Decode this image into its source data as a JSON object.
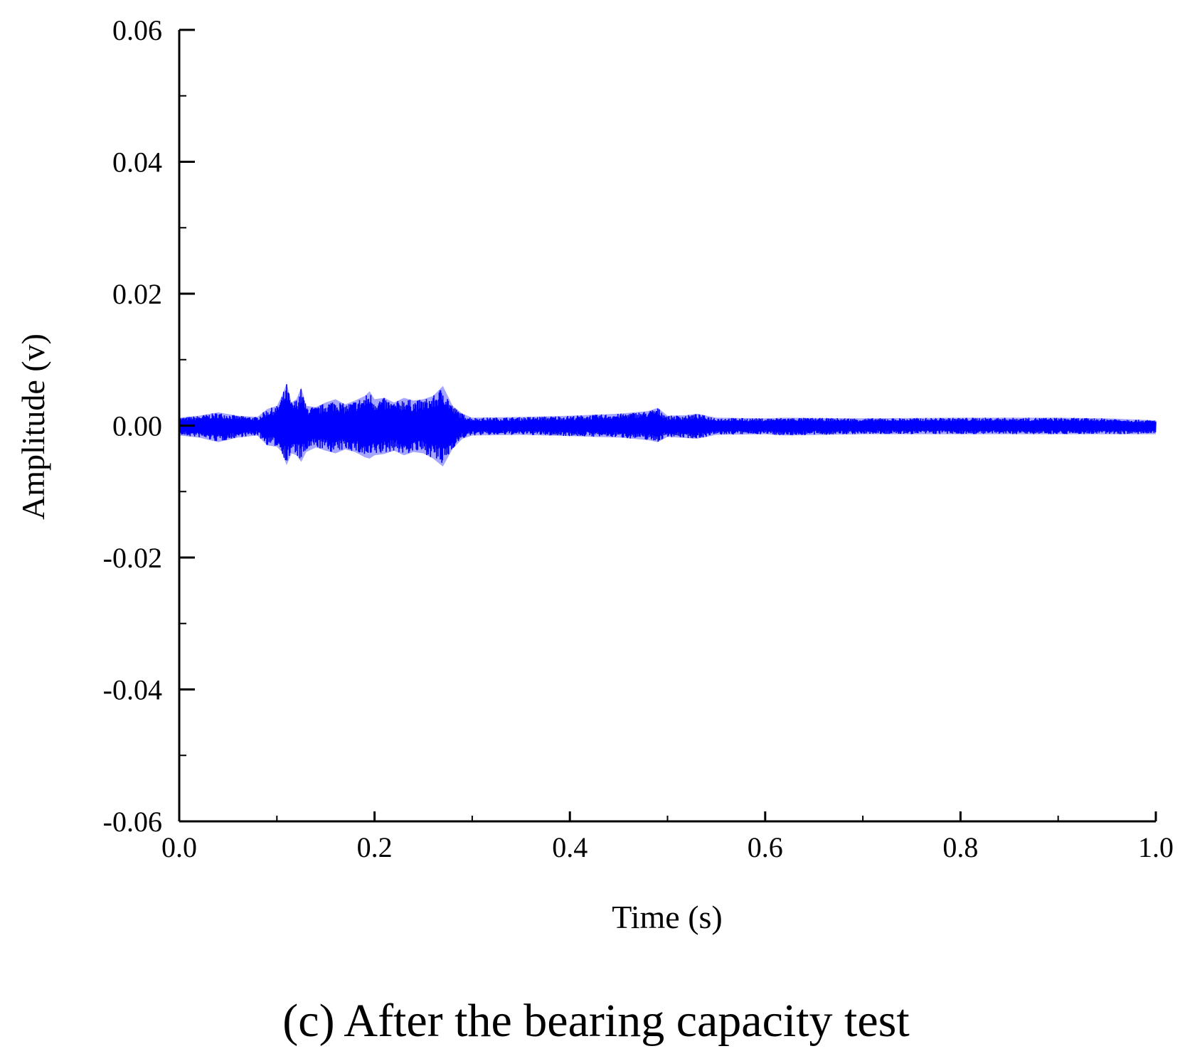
{
  "chart_data": {
    "type": "line",
    "caption": "(c) After the bearing capacity test",
    "title": "",
    "xlabel": "Time (s)",
    "ylabel": "Amplitude (v)",
    "xlim": [
      0.0,
      1.0
    ],
    "ylim": [
      -0.06,
      0.06
    ],
    "x_ticks": [
      "0.0",
      "0.2",
      "0.4",
      "0.6",
      "0.8",
      "1.0"
    ],
    "y_ticks": [
      "0.06",
      "0.04",
      "0.02",
      "0.00",
      "-0.02",
      "-0.04",
      "-0.06"
    ],
    "grid": false,
    "legend": "none",
    "series": [
      {
        "color": "#0000ff",
        "x": [
          0.0,
          0.02,
          0.04,
          0.06,
          0.08,
          0.09,
          0.1,
          0.105,
          0.11,
          0.115,
          0.12,
          0.125,
          0.13,
          0.14,
          0.15,
          0.16,
          0.17,
          0.18,
          0.19,
          0.195,
          0.2,
          0.21,
          0.22,
          0.23,
          0.24,
          0.25,
          0.26,
          0.27,
          0.28,
          0.29,
          0.3,
          0.35,
          0.4,
          0.45,
          0.48,
          0.49,
          0.5,
          0.52,
          0.53,
          0.55,
          0.6,
          0.62,
          0.7,
          0.8,
          0.9,
          0.95,
          1.0
        ],
        "y_upper": [
          0.0012,
          0.0015,
          0.002,
          0.0015,
          0.0013,
          0.0025,
          0.003,
          0.0045,
          0.0064,
          0.0035,
          0.004,
          0.0058,
          0.003,
          0.0028,
          0.0035,
          0.004,
          0.0032,
          0.0038,
          0.0045,
          0.0052,
          0.004,
          0.0042,
          0.0035,
          0.0042,
          0.0038,
          0.004,
          0.0045,
          0.006,
          0.003,
          0.0018,
          0.0012,
          0.0013,
          0.0015,
          0.0018,
          0.0022,
          0.0027,
          0.0015,
          0.0016,
          0.0018,
          0.0012,
          0.0011,
          0.0012,
          0.0011,
          0.0012,
          0.0012,
          0.0011,
          0.0008
        ],
        "y_lower": [
          -0.0015,
          -0.0018,
          -0.0025,
          -0.0018,
          -0.0015,
          -0.003,
          -0.0032,
          -0.004,
          -0.006,
          -0.0042,
          -0.0045,
          -0.0055,
          -0.004,
          -0.0033,
          -0.0038,
          -0.0042,
          -0.0036,
          -0.004,
          -0.0048,
          -0.005,
          -0.0045,
          -0.0043,
          -0.0038,
          -0.0045,
          -0.004,
          -0.0042,
          -0.005,
          -0.0062,
          -0.0035,
          -0.002,
          -0.0015,
          -0.0014,
          -0.0016,
          -0.0018,
          -0.0022,
          -0.0025,
          -0.0017,
          -0.0019,
          -0.002,
          -0.0014,
          -0.0013,
          -0.0015,
          -0.0013,
          -0.0013,
          -0.0013,
          -0.0013,
          -0.0013
        ]
      }
    ]
  }
}
